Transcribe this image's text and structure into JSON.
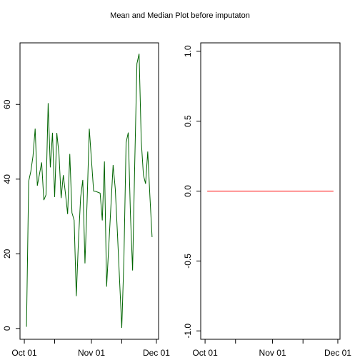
{
  "title": "Mean and Median Plot before imputaton",
  "chart_data": [
    {
      "type": "line",
      "color": "#006400",
      "x": [
        "Oct 02",
        "Oct 03",
        "Oct 04",
        "Oct 05",
        "Oct 06",
        "Oct 07",
        "Oct 09",
        "Oct 10",
        "Oct 11",
        "Oct 12",
        "Oct 13",
        "Oct 14",
        "Oct 15",
        "Oct 16",
        "Oct 17",
        "Oct 18",
        "Oct 19",
        "Oct 20",
        "Oct 21",
        "Oct 22",
        "Oct 23",
        "Oct 24",
        "Oct 25",
        "Oct 26",
        "Oct 27",
        "Oct 28",
        "Oct 29",
        "Oct 30",
        "Oct 31",
        "Nov 02",
        "Nov 03",
        "Nov 05",
        "Nov 06",
        "Nov 07",
        "Nov 08",
        "Nov 11",
        "Nov 12",
        "Nov 13",
        "Nov 15",
        "Nov 16",
        "Nov 17",
        "Nov 18",
        "Nov 19",
        "Nov 20",
        "Nov 21",
        "Nov 22",
        "Nov 23",
        "Nov 24",
        "Nov 25",
        "Nov 26",
        "Nov 27",
        "Nov 28",
        "Nov 29"
      ],
      "values": [
        0.44,
        39.42,
        42.07,
        46.16,
        53.54,
        38.25,
        44.48,
        34.38,
        35.78,
        60.35,
        43.15,
        52.42,
        35.2,
        52.38,
        46.71,
        34.92,
        41.07,
        36.09,
        30.63,
        46.74,
        30.97,
        29.01,
        8.65,
        23.53,
        35.14,
        39.78,
        17.42,
        34.09,
        53.52,
        36.81,
        36.7,
        36.25,
        28.94,
        44.73,
        11.18,
        43.78,
        37.38,
        25.47,
        0.14,
        18.89,
        49.79,
        52.47,
        30.7,
        15.53,
        44.4,
        70.93,
        73.59,
        50.27,
        41.09,
        38.76,
        47.38,
        35.36,
        24.47
      ],
      "xlim": [
        "Sep 29",
        "Dec 02"
      ],
      "xticks": [
        "Oct 01",
        {
          "value": "Oct 15",
          "label": null
        },
        "Nov 01",
        {
          "value": "Nov 15",
          "label": null
        },
        "Dec 01"
      ],
      "ylim": [
        -2.9,
        76.5
      ],
      "yticks": [
        0,
        20,
        40,
        60
      ]
    },
    {
      "type": "line",
      "color": "#ff0000",
      "x": [
        "Oct 02",
        "Oct 03",
        "Oct 04",
        "Oct 05",
        "Oct 06",
        "Oct 07",
        "Oct 09",
        "Oct 10",
        "Oct 11",
        "Oct 12",
        "Oct 13",
        "Oct 14",
        "Oct 15",
        "Oct 16",
        "Oct 17",
        "Oct 18",
        "Oct 19",
        "Oct 20",
        "Oct 21",
        "Oct 22",
        "Oct 23",
        "Oct 24",
        "Oct 25",
        "Oct 26",
        "Oct 27",
        "Oct 28",
        "Oct 29",
        "Oct 30",
        "Oct 31",
        "Nov 02",
        "Nov 03",
        "Nov 05",
        "Nov 06",
        "Nov 07",
        "Nov 08",
        "Nov 11",
        "Nov 12",
        "Nov 13",
        "Nov 15",
        "Nov 16",
        "Nov 17",
        "Nov 18",
        "Nov 19",
        "Nov 20",
        "Nov 21",
        "Nov 22",
        "Nov 23",
        "Nov 24",
        "Nov 25",
        "Nov 26",
        "Nov 27",
        "Nov 28",
        "Nov 29"
      ],
      "values": [
        0,
        0,
        0,
        0,
        0,
        0,
        0,
        0,
        0,
        0,
        0,
        0,
        0,
        0,
        0,
        0,
        0,
        0,
        0,
        0,
        0,
        0,
        0,
        0,
        0,
        0,
        0,
        0,
        0,
        0,
        0,
        0,
        0,
        0,
        0,
        0,
        0,
        0,
        0,
        0,
        0,
        0,
        0,
        0,
        0,
        0,
        0,
        0,
        0,
        0,
        0,
        0,
        0
      ],
      "xlim": [
        "Sep 29",
        "Dec 02"
      ],
      "xticks": [
        "Oct 01",
        {
          "value": "Oct 15",
          "label": null
        },
        "Nov 01",
        {
          "value": "Nov 15",
          "label": null
        },
        "Dec 01"
      ],
      "ylim": [
        -1.06,
        1.06
      ],
      "yticks": [
        {
          "value": -1,
          "label": "-1.0"
        },
        -0.5,
        {
          "value": 0,
          "label": "0.0"
        },
        0.5,
        {
          "value": 1,
          "label": "1.0"
        }
      ]
    }
  ]
}
